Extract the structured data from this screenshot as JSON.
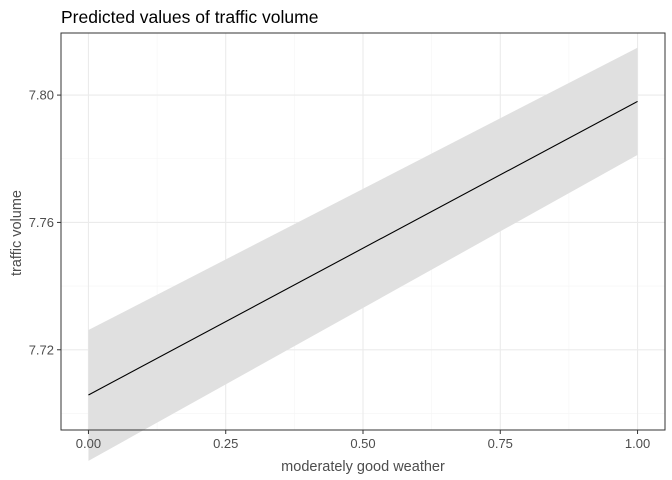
{
  "chart_data": {
    "type": "line",
    "title": "Predicted values of traffic volume",
    "xlabel": "moderately good weather",
    "ylabel": "traffic volume",
    "xlim": [
      -0.05,
      1.05
    ],
    "ylim": [
      7.6948,
      7.8195
    ],
    "x_ticks": [
      0.0,
      0.25,
      0.5,
      0.75,
      1.0
    ],
    "x_tick_labels": [
      "0.00",
      "0.25",
      "0.50",
      "0.75",
      "1.00"
    ],
    "y_ticks": [
      7.72,
      7.76,
      7.8
    ],
    "y_tick_labels": [
      "7.72",
      "7.76",
      "7.80"
    ],
    "grid": true,
    "legend": "none",
    "colors": {
      "line": "#000000",
      "ribbon": "#e0e0e0",
      "grid_major": "#ebebeb",
      "grid_minor": "#f5f5f5",
      "panel_border": "#333333",
      "tick_text": "#4d4d4d"
    },
    "series": [
      {
        "x": [
          0.0,
          1.0
        ],
        "y": [
          7.7058,
          7.798
        ],
        "ci_lower": [
          7.6851,
          7.7812
        ],
        "ci_upper": [
          7.7262,
          7.8149
        ]
      }
    ]
  }
}
